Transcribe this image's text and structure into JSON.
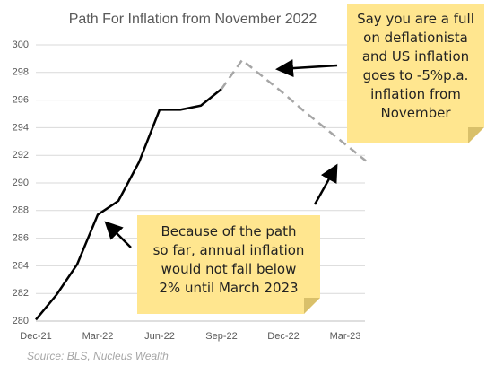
{
  "chart_data": {
    "type": "line",
    "title": "Path For Inflation from November 2022",
    "source": "Source: BLS, Nucleus Wealth",
    "categories": [
      "Dec-21",
      null,
      null,
      "Mar-22",
      null,
      null,
      "Jun-22",
      null,
      null,
      "Sep-22",
      null,
      null,
      "Dec-22",
      null,
      null,
      "Mar-23",
      null
    ],
    "series": [
      {
        "color": "#000000",
        "dashed": false,
        "values": [
          280.1,
          281.9,
          284.1,
          287.7,
          288.7,
          291.5,
          295.3,
          295.3,
          295.6,
          296.8,
          null,
          null,
          null,
          null,
          null,
          null,
          null
        ]
      },
      {
        "color": "#a6a6a6",
        "dashed": true,
        "values": [
          null,
          null,
          null,
          null,
          null,
          null,
          null,
          null,
          null,
          296.8,
          298.9,
          297.7,
          296.5,
          295.2,
          294.0,
          292.8,
          291.6
        ]
      }
    ],
    "ylim": [
      280,
      300
    ],
    "yticks": [
      280,
      282,
      284,
      286,
      288,
      290,
      292,
      294,
      296,
      298,
      300
    ],
    "grid": true,
    "annotations": [
      {
        "lines": [
          "Say you are a full",
          "on deflationista",
          "and US inflation",
          "goes to -5%p.a.",
          "inflation from",
          "November"
        ]
      },
      {
        "lines": [
          "Because of the path",
          [
            "so far,",
            "annual",
            "inflation"
          ],
          "would not fall below",
          "2% until March 2023"
        ]
      }
    ]
  }
}
